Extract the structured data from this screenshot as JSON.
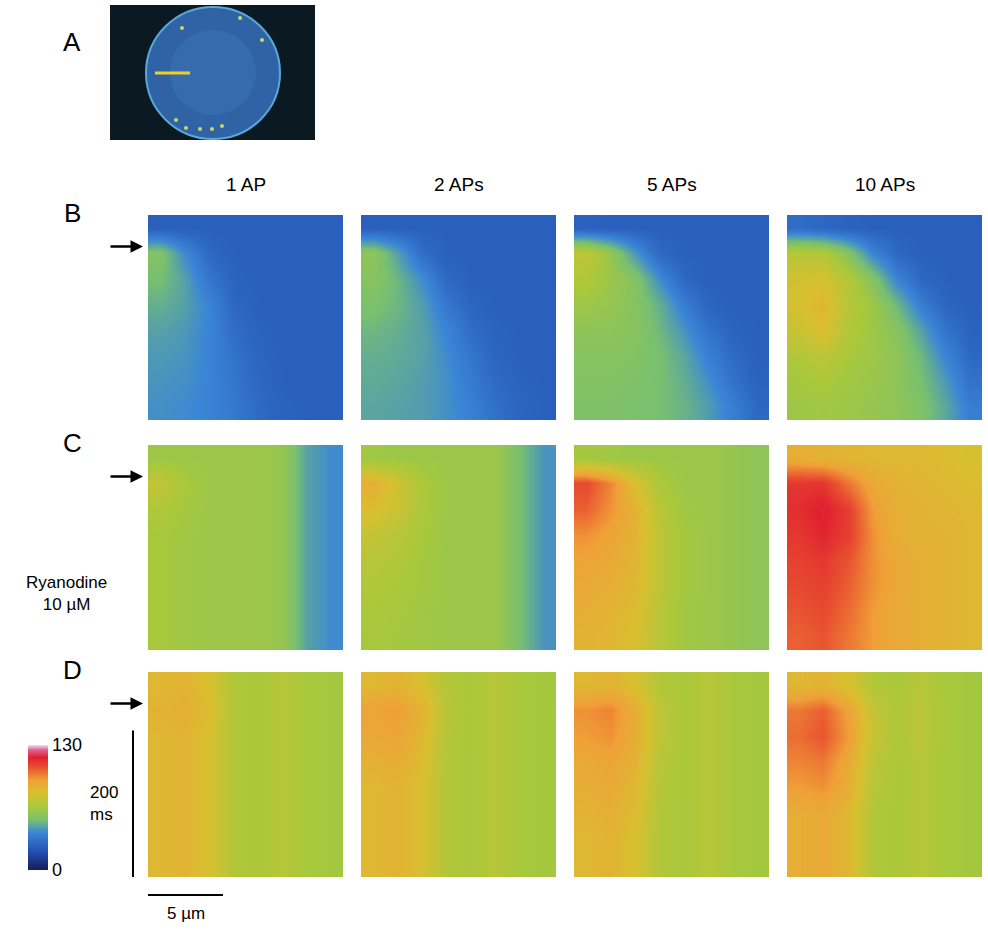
{
  "panel_labels": [
    "A",
    "B",
    "C",
    "D"
  ],
  "column_titles": [
    "1 AP",
    "2 APs",
    "5 APs",
    "10 APs"
  ],
  "chart_data": {
    "type": "heatmap",
    "tick_labels": false,
    "x": [
      0.8,
      2.4,
      4.1,
      5.7,
      7.3,
      8.9,
      10.6,
      12.2
    ],
    "y": [
      17.5,
      52.5,
      87.5,
      122.5,
      157.5,
      192.5,
      227.5,
      262.5
    ],
    "xlim": [
      0,
      13
    ],
    "ylim": [
      0,
      280
    ],
    "stimulus_time": 43,
    "colorbar": {
      "range": [
        0,
        130
      ],
      "ticks": [
        0,
        130
      ]
    },
    "scale_bars": {
      "x": {
        "value": 5,
        "label": "5 µm"
      },
      "y": {
        "value": 200,
        "label": "200 ms"
      }
    },
    "rows": [
      {
        "label": "B",
        "panels": [
          [
            [
              25,
              25,
              25,
              25,
              25,
              25,
              25,
              25
            ],
            [
              55,
              40,
              28,
              25,
              25,
              25,
              25,
              25
            ],
            [
              52,
              45,
              33,
              26,
              25,
              25,
              25,
              25
            ],
            [
              48,
              45,
              38,
              28,
              25,
              25,
              25,
              25
            ],
            [
              45,
              43,
              38,
              30,
              26,
              25,
              25,
              25
            ],
            [
              43,
              42,
              38,
              32,
              27,
              25,
              25,
              25
            ],
            [
              42,
              41,
              38,
              33,
              28,
              25,
              25,
              25
            ],
            [
              41,
              40,
              38,
              34,
              29,
              26,
              25,
              25
            ]
          ],
          [
            [
              25,
              25,
              25,
              25,
              25,
              25,
              25,
              25
            ],
            [
              58,
              45,
              30,
              25,
              25,
              25,
              25,
              25
            ],
            [
              56,
              50,
              40,
              28,
              25,
              25,
              25,
              25
            ],
            [
              53,
              50,
              44,
              34,
              27,
              25,
              25,
              25
            ],
            [
              50,
              48,
              45,
              38,
              30,
              26,
              25,
              25
            ],
            [
              48,
              47,
              45,
              40,
              33,
              27,
              25,
              25
            ],
            [
              47,
              46,
              44,
              41,
              35,
              29,
              26,
              25
            ],
            [
              46,
              45,
              44,
              41,
              37,
              31,
              27,
              25
            ]
          ],
          [
            [
              26,
              25,
              25,
              25,
              25,
              25,
              25,
              25
            ],
            [
              72,
              60,
              42,
              28,
              25,
              25,
              25,
              25
            ],
            [
              68,
              62,
              55,
              40,
              28,
              25,
              25,
              25
            ],
            [
              62,
              60,
              56,
              48,
              36,
              27,
              25,
              25
            ],
            [
              58,
              58,
              56,
              50,
              42,
              32,
              26,
              25
            ],
            [
              56,
              56,
              55,
              52,
              46,
              37,
              29,
              25
            ],
            [
              55,
              55,
              54,
              52,
              48,
              41,
              32,
              26
            ],
            [
              54,
              54,
              53,
              52,
              49,
              44,
              36,
              28
            ]
          ],
          [
            [
              30,
              28,
              26,
              25,
              25,
              25,
              25,
              25
            ],
            [
              70,
              68,
              55,
              38,
              28,
              25,
              25,
              25
            ],
            [
              78,
              80,
              68,
              55,
              38,
              28,
              25,
              25
            ],
            [
              80,
              85,
              70,
              62,
              50,
              36,
              27,
              25
            ],
            [
              75,
              82,
              68,
              62,
              56,
              45,
              32,
              26
            ],
            [
              68,
              72,
              65,
              62,
              58,
              50,
              38,
              28
            ],
            [
              64,
              66,
              63,
              61,
              58,
              52,
              43,
              32
            ],
            [
              62,
              63,
              62,
              60,
              58,
              54,
              46,
              36
            ]
          ]
        ]
      },
      {
        "label": "C",
        "note": [
          "Ryanodine",
          "10 µM"
        ],
        "panels": [
          [
            [
              62,
              62,
              62,
              62,
              62,
              60,
              45,
              40
            ],
            [
              74,
              66,
              62,
              62,
              62,
              60,
              45,
              40
            ],
            [
              68,
              64,
              62,
              62,
              62,
              60,
              45,
              40
            ],
            [
              65,
              63,
              62,
              62,
              62,
              60,
              45,
              40
            ],
            [
              65,
              63,
              62,
              62,
              62,
              60,
              45,
              40
            ],
            [
              65,
              63,
              62,
              62,
              62,
              60,
              45,
              40
            ],
            [
              65,
              63,
              62,
              62,
              62,
              60,
              45,
              40
            ],
            [
              65,
              63,
              62,
              62,
              62,
              60,
              45,
              40
            ]
          ],
          [
            [
              63,
              62,
              62,
              62,
              62,
              62,
              52,
              42
            ],
            [
              88,
              78,
              66,
              62,
              62,
              62,
              52,
              42
            ],
            [
              82,
              76,
              66,
              62,
              62,
              62,
              52,
              42
            ],
            [
              74,
              70,
              65,
              62,
              62,
              62,
              52,
              42
            ],
            [
              70,
              68,
              64,
              62,
              62,
              62,
              52,
              42
            ],
            [
              68,
              66,
              64,
              62,
              62,
              62,
              52,
              42
            ],
            [
              66,
              65,
              63,
              62,
              62,
              62,
              52,
              42
            ],
            [
              65,
              64,
              63,
              62,
              62,
              62,
              52,
              42
            ]
          ],
          [
            [
              64,
              63,
              62,
              62,
              62,
              62,
              60,
              58
            ],
            [
              108,
              98,
              80,
              66,
              62,
              62,
              60,
              58
            ],
            [
              104,
              96,
              86,
              70,
              63,
              62,
              60,
              58
            ],
            [
              96,
              92,
              86,
              72,
              64,
              62,
              60,
              58
            ],
            [
              92,
              90,
              85,
              72,
              64,
              62,
              60,
              58
            ],
            [
              90,
              88,
              84,
              72,
              64,
              62,
              60,
              58
            ],
            [
              88,
              86,
              82,
              70,
              63,
              62,
              60,
              58
            ],
            [
              86,
              85,
              80,
              70,
              63,
              62,
              60,
              58
            ]
          ],
          [
            [
              88,
              86,
              85,
              84,
              84,
              84,
              82,
              80
            ],
            [
              112,
              112,
              100,
              90,
              86,
              85,
              84,
              82
            ],
            [
              114,
              118,
              110,
              94,
              88,
              86,
              85,
              84
            ],
            [
              112,
              116,
              110,
              96,
              88,
              86,
              86,
              84
            ],
            [
              110,
              112,
              106,
              96,
              90,
              88,
              86,
              84
            ],
            [
              108,
              110,
              104,
              96,
              90,
              88,
              86,
              84
            ],
            [
              106,
              108,
              102,
              94,
              90,
              88,
              86,
              84
            ],
            [
              104,
              106,
              100,
              94,
              90,
              88,
              86,
              84
            ]
          ]
        ]
      },
      {
        "label": "D",
        "panels": [
          [
            [
              84,
              86,
              80,
              68,
              66,
              70,
              65,
              64
            ],
            [
              86,
              88,
              82,
              68,
              66,
              70,
              65,
              64
            ],
            [
              84,
              86,
              80,
              68,
              66,
              70,
              65,
              64
            ],
            [
              84,
              86,
              80,
              68,
              66,
              70,
              65,
              64
            ],
            [
              84,
              86,
              80,
              68,
              66,
              70,
              65,
              64
            ],
            [
              84,
              86,
              80,
              68,
              66,
              70,
              65,
              64
            ],
            [
              84,
              86,
              80,
              68,
              66,
              70,
              65,
              64
            ],
            [
              84,
              86,
              80,
              68,
              66,
              70,
              65,
              64
            ]
          ],
          [
            [
              84,
              86,
              80,
              68,
              66,
              70,
              65,
              64
            ],
            [
              92,
              94,
              86,
              70,
              66,
              70,
              65,
              64
            ],
            [
              90,
              92,
              84,
              69,
              66,
              70,
              65,
              64
            ],
            [
              87,
              89,
              82,
              68,
              66,
              70,
              65,
              64
            ],
            [
              84,
              86,
              80,
              68,
              66,
              70,
              65,
              64
            ],
            [
              84,
              86,
              80,
              68,
              66,
              70,
              65,
              64
            ],
            [
              84,
              86,
              80,
              68,
              66,
              70,
              65,
              64
            ],
            [
              84,
              86,
              80,
              68,
              66,
              70,
              65,
              64
            ]
          ],
          [
            [
              84,
              86,
              80,
              68,
              66,
              70,
              65,
              64
            ],
            [
              96,
              98,
              88,
              72,
              66,
              70,
              65,
              64
            ],
            [
              94,
              96,
              88,
              72,
              66,
              70,
              65,
              64
            ],
            [
              90,
              92,
              86,
              70,
              66,
              70,
              65,
              64
            ],
            [
              88,
              90,
              84,
              69,
              66,
              70,
              65,
              64
            ],
            [
              86,
              88,
              82,
              68,
              66,
              70,
              65,
              64
            ],
            [
              84,
              86,
              80,
              68,
              66,
              70,
              65,
              64
            ],
            [
              84,
              86,
              80,
              68,
              66,
              70,
              65,
              64
            ]
          ],
          [
            [
              84,
              86,
              80,
              68,
              66,
              70,
              65,
              64
            ],
            [
              100,
              104,
              92,
              74,
              67,
              71,
              65,
              64
            ],
            [
              102,
              106,
              94,
              75,
              67,
              71,
              65,
              64
            ],
            [
              98,
              100,
              90,
              72,
              66,
              70,
              65,
              64
            ],
            [
              94,
              96,
              88,
              70,
              66,
              70,
              65,
              64
            ],
            [
              88,
              90,
              84,
              68,
              66,
              70,
              65,
              64
            ],
            [
              88,
              90,
              84,
              68,
              66,
              70,
              65,
              64
            ],
            [
              88,
              90,
              84,
              68,
              66,
              70,
              65,
              64
            ]
          ]
        ]
      }
    ]
  }
}
